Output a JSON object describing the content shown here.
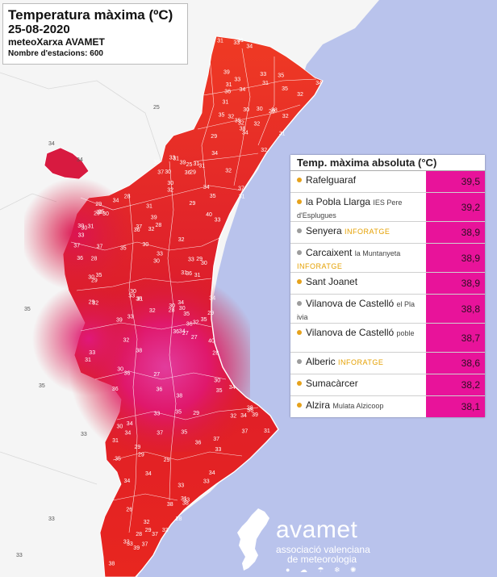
{
  "header": {
    "title": "Temperatura màxima (ºC)",
    "date": "25-08-2020",
    "source": "meteoXarxa AVAMET",
    "station_count": "Nombre d'estacions: 600"
  },
  "colors": {
    "sea": "#b9c3ec",
    "land_outside": "#f5f5f5",
    "temp_high": "#e01868",
    "temp_mid": "#dc1a2a",
    "temp_low": "#ef2f20",
    "panel_value_bg": "#e8139a",
    "dot_orange": "#e6a21c",
    "dot_gray": "#9c9c9c"
  },
  "ranking": {
    "title": "Temp. màxima absoluta (°C)",
    "rows": [
      {
        "name": "Rafelguaraf",
        "sub": "",
        "tag": "",
        "value": "39,5",
        "dot": "orange"
      },
      {
        "name": "la Pobla Llarga",
        "sub": "IES Pere d'Esplugues",
        "tag": "",
        "value": "39,2",
        "dot": "orange"
      },
      {
        "name": "Senyera",
        "sub": "",
        "tag": "INFORATGE",
        "value": "38,9",
        "dot": "gray"
      },
      {
        "name": "Carcaixent",
        "sub": "la Muntanyeta",
        "tag": "INFORATGE",
        "value": "38,9",
        "dot": "gray"
      },
      {
        "name": "Sant Joanet",
        "sub": "",
        "tag": "",
        "value": "38,9",
        "dot": "orange"
      },
      {
        "name": "Vilanova de Castelló",
        "sub": "el Pla ivia",
        "tag": "",
        "value": "38,8",
        "dot": "gray"
      },
      {
        "name": "Vilanova de Castelló",
        "sub": "poble",
        "tag": "",
        "value": "38,7",
        "dot": "orange"
      },
      {
        "name": "Alberic",
        "sub": "",
        "tag": "INFORATGE",
        "value": "38,6",
        "dot": "gray"
      },
      {
        "name": "Sumacàrcer",
        "sub": "",
        "tag": "",
        "value": "38,2",
        "dot": "orange"
      },
      {
        "name": "Alzira",
        "sub": "Mulata Alzicoop",
        "tag": "",
        "value": "38,1",
        "dot": "orange"
      }
    ]
  },
  "logo": {
    "name": "avamet",
    "line1": "associació valenciana",
    "line2": "de meteorologia",
    "icons": "● ☁ ☂ ❄ ✺"
  },
  "station_values": [
    "27",
    "30",
    "29",
    "33",
    "31",
    "32",
    "34",
    "35",
    "36",
    "37",
    "38",
    "39",
    "40",
    "28",
    "26",
    "25",
    "36",
    "34",
    "33",
    "31",
    "30",
    "29",
    "32",
    "35",
    "37",
    "39",
    "38",
    "36",
    "34",
    "33",
    "32",
    "31",
    "30",
    "28",
    "29",
    "31",
    "33",
    "35",
    "37",
    "36",
    "34",
    "32",
    "30",
    "29",
    "31",
    "33",
    "35",
    "38",
    "39",
    "37",
    "36",
    "34",
    "32",
    "31",
    "30",
    "29",
    "28",
    "27",
    "32",
    "33",
    "34",
    "35",
    "36",
    "37",
    "38",
    "39",
    "40",
    "37",
    "35",
    "33",
    "31",
    "30",
    "29",
    "33",
    "34",
    "35",
    "36",
    "38",
    "39",
    "37",
    "35",
    "34",
    "33",
    "32",
    "31",
    "30",
    "29",
    "28",
    "34",
    "35",
    "37",
    "36",
    "33",
    "32",
    "31",
    "30",
    "29",
    "33",
    "32",
    "34",
    "35",
    "31",
    "30",
    "29",
    "28",
    "27",
    "30",
    "31",
    "32",
    "33",
    "34",
    "35",
    "33",
    "32",
    "31",
    "30",
    "29",
    "28",
    "34",
    "35",
    "36",
    "33",
    "31",
    "30",
    "29",
    "31",
    "32",
    "33",
    "34",
    "35",
    "36",
    "37",
    "35",
    "34",
    "33",
    "32",
    "31",
    "30",
    "32",
    "33",
    "34",
    "35",
    "36",
    "37",
    "38",
    "39",
    "38",
    "36",
    "34",
    "32",
    "31",
    "30",
    "29",
    "28",
    "29",
    "30",
    "31",
    "32",
    "33",
    "34",
    "35",
    "30",
    "29",
    "28",
    "31",
    "33",
    "32",
    "31",
    "30",
    "29"
  ]
}
